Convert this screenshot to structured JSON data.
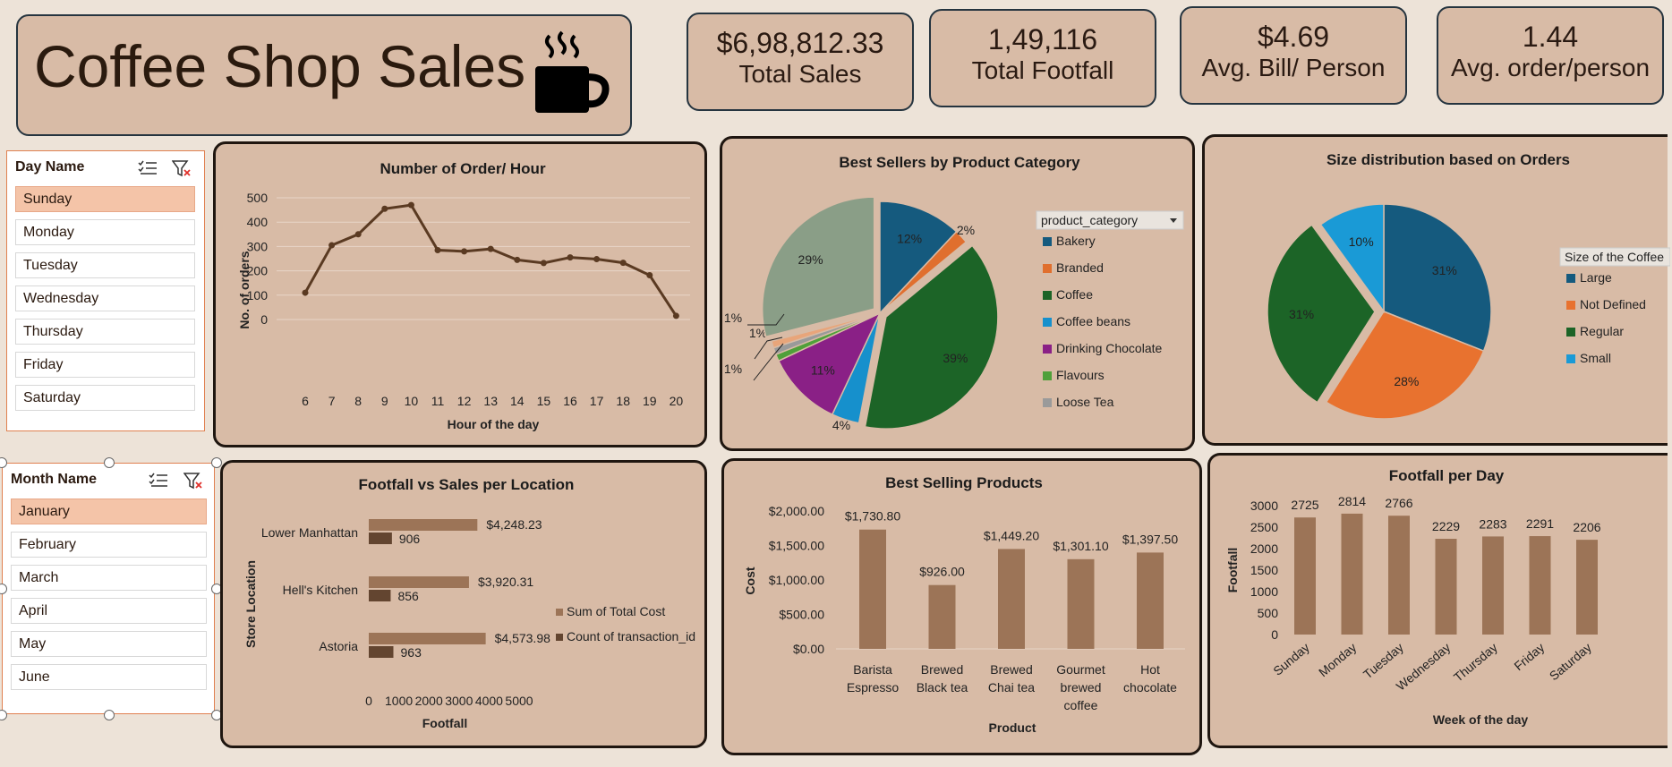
{
  "header": {
    "title": "Coffee Shop Sales"
  },
  "kpis": [
    {
      "value": "$6,98,812.33",
      "label": "Total Sales"
    },
    {
      "value": "1,49,116",
      "label": "Total Footfall"
    },
    {
      "value": "$4.69",
      "label": "Avg. Bill/ Person"
    },
    {
      "value": "1.44",
      "label": "Avg. order/person"
    }
  ],
  "day_slicer": {
    "title": "Day Name",
    "items": [
      "Sunday",
      "Monday",
      "Tuesday",
      "Wednesday",
      "Thursday",
      "Friday",
      "Saturday"
    ],
    "selected": "Sunday"
  },
  "month_slicer": {
    "title": "Month Name",
    "items": [
      "January",
      "February",
      "March",
      "April",
      "May",
      "June"
    ],
    "selected": "January"
  },
  "colors": {
    "brown_line": "#5a3a22",
    "bar_light": "#9c7457",
    "bar_dark": "#634530",
    "panel_bg": "#d8bba6",
    "slicer_selected": "#f4c4a8"
  },
  "chart_data": [
    {
      "type": "line",
      "title": "Number of Order/ Hour",
      "xlabel": "Hour of the day",
      "ylabel": "No. of orders",
      "x": [
        6,
        7,
        8,
        9,
        10,
        11,
        12,
        13,
        14,
        15,
        16,
        17,
        18,
        19,
        20
      ],
      "values": [
        110,
        305,
        350,
        455,
        470,
        285,
        280,
        290,
        245,
        232,
        255,
        248,
        233,
        182,
        15
      ],
      "ylim": [
        0,
        500
      ],
      "yticks": [
        "0",
        "100",
        "200",
        "300",
        "400",
        "500"
      ],
      "grid": true
    },
    {
      "type": "pie",
      "title": "Best Sellers by Product Category",
      "legend_title": "product_category",
      "legend_position": "right",
      "slices": [
        {
          "name": "Bakery",
          "value": 12,
          "label": "12%",
          "color": "#155a7e"
        },
        {
          "name": "Branded",
          "value": 2,
          "label": "2%",
          "color": "#e06f2e"
        },
        {
          "name": "Coffee",
          "value": 39,
          "label": "39%",
          "color": "#1c6427"
        },
        {
          "name": "Coffee beans",
          "value": 4,
          "label": "4%",
          "color": "#1690cc"
        },
        {
          "name": "Drinking Chocolate",
          "value": 11,
          "label": "11%",
          "color": "#8a2086"
        },
        {
          "name": "Flavours",
          "value": 1,
          "label": "1%",
          "color": "#4fa03a"
        },
        {
          "name": "Loose Tea",
          "value": 1,
          "label": "1%",
          "color": "#9a9a9a"
        },
        {
          "name": "",
          "value": 1,
          "label": "1%",
          "color": "#e8a57a"
        },
        {
          "name": "",
          "value": 29,
          "label": "29%",
          "color": "#8a9e87"
        }
      ]
    },
    {
      "type": "pie",
      "title": "Size distribution based on Orders",
      "legend_title": "Size of the Coffee",
      "legend_position": "right",
      "slices": [
        {
          "name": "Large",
          "value": 31,
          "label": "31%",
          "color": "#155a7e"
        },
        {
          "name": "Not Defined",
          "value": 28,
          "label": "28%",
          "color": "#e8722f"
        },
        {
          "name": "Regular",
          "value": 31,
          "label": "31%",
          "color": "#1c6427"
        },
        {
          "name": "Small",
          "value": 10,
          "label": "10%",
          "color": "#1a9ad6"
        }
      ]
    },
    {
      "type": "bar",
      "orientation": "horizontal",
      "title": "Footfall vs Sales per Location",
      "xlabel": "Footfall",
      "ylabel": "Store Location",
      "categories": [
        "Lower Manhattan",
        "Hell's Kitchen",
        "Astoria"
      ],
      "series": [
        {
          "name": "Sum of Total Cost",
          "values": [
            4248.23,
            3920.31,
            4573.98
          ],
          "labels": [
            "$4,248.23",
            "$3,920.31",
            "$4,573.98"
          ]
        },
        {
          "name": "Count of transaction_id",
          "values": [
            906,
            856,
            963
          ],
          "labels": [
            "906",
            "856",
            "963"
          ]
        }
      ],
      "xlim": [
        0,
        5000
      ],
      "xticks": [
        "0",
        "1000",
        "2000",
        "3000",
        "4000",
        "5000"
      ],
      "legend_position": "right"
    },
    {
      "type": "bar",
      "title": "Best Selling Products",
      "xlabel": "Product",
      "ylabel": "Cost",
      "categories": [
        [
          "Barista",
          "Espresso"
        ],
        [
          "Brewed",
          "Black tea"
        ],
        [
          "Brewed",
          "Chai tea"
        ],
        [
          "Gourmet",
          "brewed",
          "coffee"
        ],
        [
          "Hot",
          "chocolate"
        ]
      ],
      "values": [
        1730.8,
        926.0,
        1449.2,
        1301.1,
        1397.5
      ],
      "labels": [
        "$1,730.80",
        "$926.00",
        "$1,449.20",
        "$1,301.10",
        "$1,397.50"
      ],
      "ylim": [
        0,
        2000
      ],
      "yticks": [
        "$0.00",
        "$500.00",
        "$1,000.00",
        "$1,500.00",
        "$2,000.00"
      ]
    },
    {
      "type": "bar",
      "title": "Footfall per Day",
      "xlabel": "Week of the day",
      "ylabel": "Footfall",
      "categories": [
        "Sunday",
        "Monday",
        "Tuesday",
        "Wednesday",
        "Thursday",
        "Friday",
        "Saturday"
      ],
      "values": [
        2725,
        2814,
        2766,
        2229,
        2283,
        2291,
        2206
      ],
      "labels": [
        "2725",
        "2814",
        "2766",
        "2229",
        "2283",
        "2291",
        "2206"
      ],
      "ylim": [
        0,
        3000
      ],
      "yticks": [
        "0",
        "500",
        "1000",
        "1500",
        "2000",
        "2500",
        "3000"
      ]
    }
  ]
}
